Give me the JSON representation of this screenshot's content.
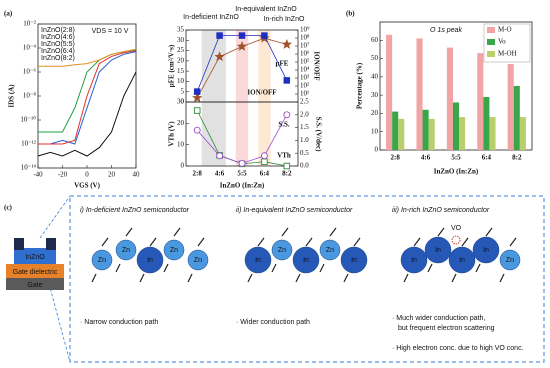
{
  "panel_labels": [
    "(a)",
    "(b)",
    "(c)"
  ],
  "chart_data": [
    {
      "type": "line",
      "annotation": "VDS = 10 V",
      "xlabel": "VGS (V)",
      "ylabel": "IDS (A)",
      "x": [
        -40,
        -30,
        -20,
        -10,
        0,
        10,
        20,
        30,
        40
      ],
      "xlim": [
        -40,
        40
      ],
      "xticks": [
        -40,
        -20,
        0,
        20,
        40
      ],
      "log_y": true,
      "ylim": [
        1e-14,
        0.01
      ],
      "yticks": [
        {
          "value": 1e-14,
          "label": "10⁻¹⁴"
        },
        {
          "value": 1e-12,
          "label": "10⁻¹²"
        },
        {
          "value": 1e-10,
          "label": "10⁻¹⁰"
        },
        {
          "value": 1e-08,
          "label": "10⁻⁸"
        },
        {
          "value": 1e-06,
          "label": "10⁻⁶"
        },
        {
          "value": 0.0001,
          "label": "10⁻⁴"
        },
        {
          "value": 0.01,
          "label": "10⁻²"
        }
      ],
      "legend": "upper left",
      "series": [
        {
          "name": "InZnO(2:8)",
          "color": "#111111",
          "values": [
            1e-13,
            2e-13,
            1e-13,
            3e-13,
            1e-13,
            5e-13,
            1e-11,
            1e-08,
            1e-06
          ]
        },
        {
          "name": "InZnO(4:6)",
          "color": "#2060d0",
          "values": [
            1e-12,
            1e-12,
            2e-12,
            1e-12,
            1e-09,
            1e-06,
            1e-05,
            3e-05,
            5e-05
          ]
        },
        {
          "name": "InZnO(5:5)",
          "color": "#e03030",
          "values": [
            1e-12,
            1e-12,
            1e-12,
            2e-12,
            1e-08,
            5e-06,
            2e-05,
            4e-05,
            6e-05
          ]
        },
        {
          "name": "InZnO(6:4)",
          "color": "#20a040",
          "values": [
            1e-11,
            1e-11,
            1e-11,
            1e-09,
            1e-06,
            1e-05,
            3e-05,
            5e-05,
            7e-05
          ]
        },
        {
          "name": "InZnO(8:2)",
          "color": "#e09020",
          "values": [
            3e-06,
            3e-06,
            3e-06,
            4e-06,
            5e-06,
            1e-05,
            3e-05,
            5e-05,
            8e-05
          ]
        }
      ]
    },
    {
      "type": "line",
      "regions": [
        {
          "label": "In-deficient InZnO",
          "color": "#d9d9d9",
          "text_color": "#111111"
        },
        {
          "label": "In-equivalent InZnO",
          "color": "#f8d0d0",
          "text_color": "#e03030"
        },
        {
          "label": "In-rich InZnO",
          "color": "#fde3c8",
          "text_color": "#e08a20"
        }
      ],
      "ylabel": "μFE (cm²/V·s)",
      "ylim": [
        0,
        35
      ],
      "yticks": [
        0,
        5,
        10,
        15,
        20,
        25,
        30,
        35
      ],
      "y2label": "ION/OFF",
      "y2_log": true,
      "y2lim": [
        1,
        1000000000.0
      ],
      "y2ticks": [
        {
          "value": 10,
          "label": "10¹"
        },
        {
          "value": 100,
          "label": "10²"
        },
        {
          "value": 1000,
          "label": "10³"
        },
        {
          "value": 10000,
          "label": "10⁴"
        },
        {
          "value": 100000,
          "label": "10⁵"
        },
        {
          "value": 1000000,
          "label": "10⁶"
        },
        {
          "value": 10000000,
          "label": "10⁷"
        },
        {
          "value": 100000000,
          "label": "10⁸"
        },
        {
          "value": 1000000000,
          "label": "10⁹"
        }
      ],
      "series": [
        {
          "name": "μFE",
          "color": "#a0522d",
          "marker": "star",
          "filled": true,
          "values": [
            2,
            22,
            27,
            31,
            28
          ]
        },
        {
          "name": "ION/OFF",
          "color": "#1f2fbf",
          "marker": "square",
          "filled": true,
          "axis": "y2",
          "values": [
            20,
            200000000,
            200000000,
            200000000,
            500
          ]
        }
      ]
    },
    {
      "type": "line",
      "categories": [
        "2:8",
        "4:6",
        "5:5",
        "6:4",
        "8:2"
      ],
      "xlabel": "InZnO (In:Zn)",
      "ylabel": "VTh (V)",
      "ylim": [
        0,
        30
      ],
      "yticks": [
        0,
        10,
        20,
        30
      ],
      "y2label": "S.S. (V/dec)",
      "y2lim": [
        0,
        2.5
      ],
      "y2ticks": [
        {
          "value": 0,
          "label": "0.0"
        },
        0.5,
        {
          "value": 1,
          "label": "1.0"
        },
        1.5,
        {
          "value": 2,
          "label": "2.0"
        },
        2.5
      ],
      "series": [
        {
          "name": "VTh",
          "color": "#2e8b3a",
          "marker": "square",
          "filled": false,
          "values": [
            26,
            5,
            1,
            2,
            0
          ]
        },
        {
          "name": "S.S.",
          "color": "#9b4fd0",
          "marker": "circle",
          "filled": false,
          "axis": "y2",
          "values": [
            1.4,
            0.4,
            0.1,
            0.4,
            2.0
          ]
        }
      ]
    },
    {
      "type": "bar",
      "title": "O 1s peak",
      "categories": [
        "2:8",
        "4:6",
        "5:5",
        "6:4",
        "8:2"
      ],
      "xlabel": "InZnO (In:Zn)",
      "ylabel": "Percentage (%)",
      "ylim": [
        0,
        70
      ],
      "yticks": [
        0,
        10,
        20,
        30,
        40,
        50,
        60
      ],
      "legend": "upper right",
      "series": [
        {
          "name": "M-O",
          "color": "#f2a3a3",
          "values": [
            63,
            61,
            56,
            53,
            47
          ]
        },
        {
          "name": "Vo",
          "color": "#3aa64a",
          "values": [
            21,
            22,
            26,
            29,
            35
          ]
        },
        {
          "name": "M-OH",
          "color": "#b8cf6c",
          "values": [
            17,
            17,
            18,
            18,
            18
          ]
        }
      ]
    }
  ],
  "diagram": {
    "device": [
      "InZnO",
      "Gate dielectric",
      "Gate"
    ],
    "boxes": [
      {
        "title": "i) In-deficient InZnO semiconductor",
        "atoms": [
          "Zn",
          "Zn",
          "In",
          "Zn",
          "Zn"
        ],
        "notes": [
          "· Narrow conduction path"
        ]
      },
      {
        "title": "ii) In-equivalent InZnO semiconductor",
        "atoms": [
          "In",
          "Zn",
          "In",
          "Zn",
          "In"
        ],
        "notes": [
          "· Wider conduction path"
        ]
      },
      {
        "title": "iii) In-rich InZnO semiconductor",
        "atoms": [
          "In",
          "In",
          "In",
          "In",
          "Zn"
        ],
        "notes": [
          "· Much wider conduction path,",
          "but frequent electron scattering",
          "· High electron conc. due to high VO conc."
        ],
        "vacancy": "VO"
      }
    ]
  }
}
